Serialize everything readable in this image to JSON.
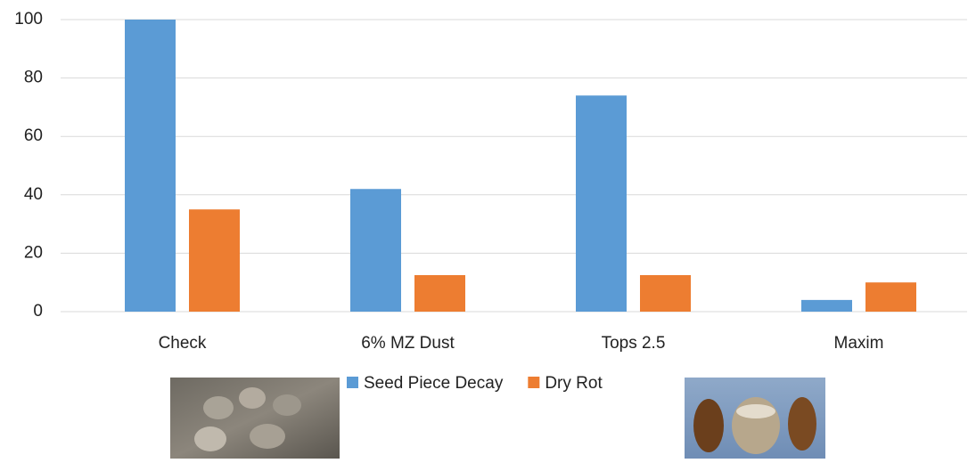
{
  "chart_data": {
    "type": "bar",
    "categories": [
      "Check",
      "6% MZ Dust",
      "Tops 2.5",
      "Maxim"
    ],
    "series": [
      {
        "name": "Seed Piece Decay",
        "color": "#5b9bd5",
        "values": [
          100,
          42,
          74,
          4
        ]
      },
      {
        "name": "Dry Rot",
        "color": "#ed7d31",
        "values": [
          35,
          12.5,
          12.5,
          10
        ]
      }
    ],
    "ylim": [
      0,
      100
    ],
    "yticks": [
      0,
      20,
      40,
      60,
      80,
      100
    ],
    "grid": true,
    "legend": "bottom"
  }
}
